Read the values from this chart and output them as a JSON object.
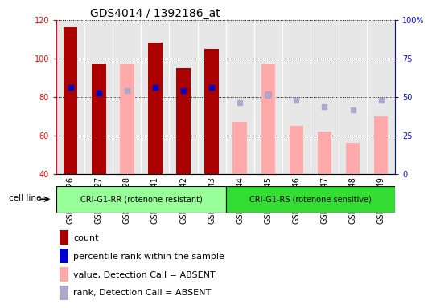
{
  "title": "GDS4014 / 1392186_at",
  "samples": [
    "GSM498426",
    "GSM498427",
    "GSM498428",
    "GSM498441",
    "GSM498442",
    "GSM498443",
    "GSM498444",
    "GSM498445",
    "GSM498446",
    "GSM498447",
    "GSM498448",
    "GSM498449"
  ],
  "group1_label": "CRI-G1-RR (rotenone resistant)",
  "group2_label": "CRI-G1-RS (rotenone sensitive)",
  "cell_line_label": "cell line",
  "ylim_left": [
    40,
    120
  ],
  "yticks_left": [
    40,
    60,
    80,
    100,
    120
  ],
  "yticks_right": [
    0,
    25,
    50,
    75,
    100
  ],
  "ytick_right_labels": [
    "0",
    "25",
    "50",
    "75",
    "100%"
  ],
  "count_values": [
    116,
    97,
    null,
    108,
    95,
    105,
    null,
    null,
    null,
    null,
    null,
    null
  ],
  "rank_values_left": [
    85,
    82,
    null,
    85,
    83,
    85,
    null,
    81,
    null,
    null,
    null,
    null
  ],
  "value_absent": [
    null,
    null,
    97,
    null,
    null,
    null,
    67,
    97,
    65,
    62,
    56,
    70
  ],
  "rank_absent_left": [
    null,
    null,
    83,
    null,
    null,
    null,
    77,
    81,
    78,
    75,
    73,
    78
  ],
  "count_color": "#aa0000",
  "rank_color": "#0000cc",
  "value_absent_color": "#ffaaaa",
  "rank_absent_color": "#aaaacc",
  "group1_bg": "#99ff99",
  "group2_bg": "#33dd33",
  "col_bg": "#d0d0d0",
  "title_fontsize": 10,
  "tick_fontsize": 7,
  "legend_fontsize": 8
}
